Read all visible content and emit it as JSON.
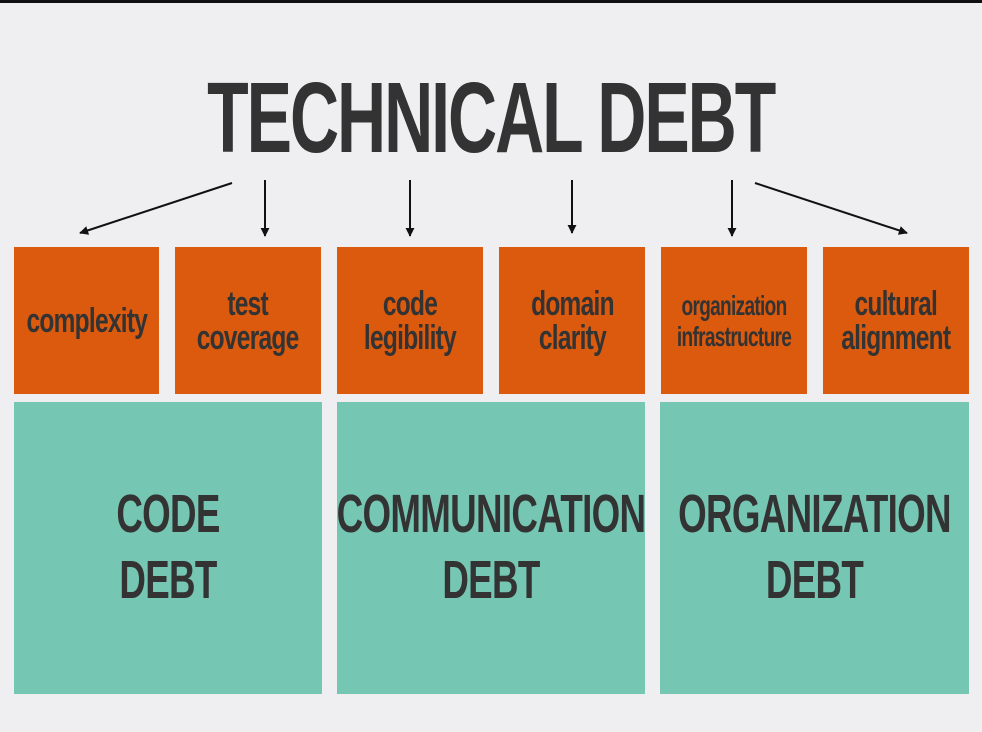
{
  "title": "TECHNICAL DEBT",
  "factors": [
    {
      "label": "complexity"
    },
    {
      "label": "test\ncoverage"
    },
    {
      "label": "code\nlegibility"
    },
    {
      "label": "domain\nclarity"
    },
    {
      "label": "organization\ninfrastructure"
    },
    {
      "label": "cultural\nalignment"
    }
  ],
  "categories": [
    {
      "label": "CODE\nDEBT"
    },
    {
      "label": "COMMUNICATION\nDEBT"
    },
    {
      "label": "ORGANIZATION\nDEBT"
    }
  ],
  "colors": {
    "background": "#efeef0",
    "factor_fill": "#dc5a0d",
    "category_fill": "#75c6b3",
    "text": "#333333"
  }
}
